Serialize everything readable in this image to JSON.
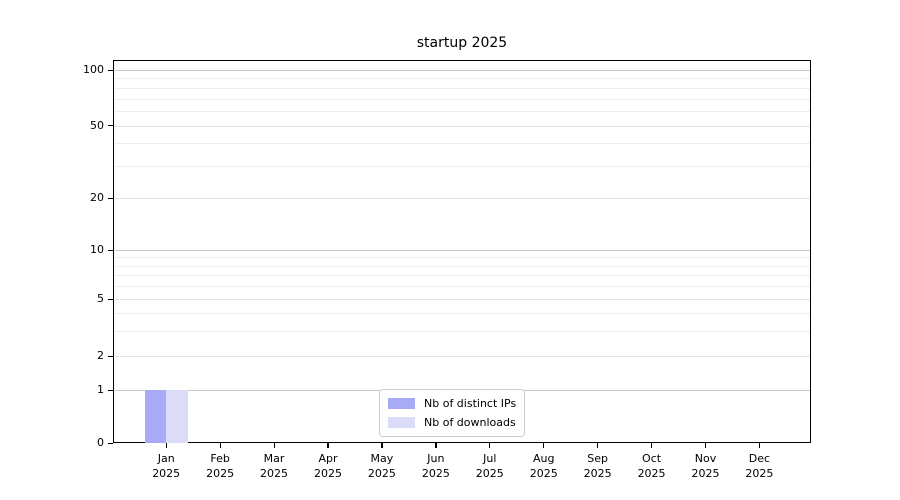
{
  "chart_data": {
    "type": "bar",
    "title": "startup 2025",
    "categories": [
      "Jan 2025",
      "Feb 2025",
      "Mar 2025",
      "Apr 2025",
      "May 2025",
      "Jun 2025",
      "Jul 2025",
      "Aug 2025",
      "Sep 2025",
      "Oct 2025",
      "Nov 2025",
      "Dec 2025"
    ],
    "x_tick_month_lines": [
      "Jan",
      "Feb",
      "Mar",
      "Apr",
      "May",
      "Jun",
      "Jul",
      "Aug",
      "Sep",
      "Oct",
      "Nov",
      "Dec"
    ],
    "x_tick_year_line": "2025",
    "series": [
      {
        "name": "Nb of distinct IPs",
        "color": "#a9aaf6",
        "values": [
          1,
          0,
          0,
          0,
          0,
          0,
          0,
          0,
          0,
          0,
          0,
          0
        ]
      },
      {
        "name": "Nb of downloads",
        "color": "#dbdcf8",
        "values": [
          1,
          0,
          0,
          0,
          0,
          0,
          0,
          0,
          0,
          0,
          0,
          0
        ]
      }
    ],
    "y_axis": {
      "scale": "symlog",
      "major_ticks": [
        0,
        1,
        2,
        5,
        10,
        20,
        50,
        100
      ],
      "minor_ticks": [
        3,
        4,
        6,
        7,
        8,
        9,
        30,
        40,
        60,
        70,
        80,
        90
      ],
      "range": [
        0,
        110
      ]
    },
    "legend": {
      "position": "lower center",
      "entries": [
        "Nb of distinct IPs",
        "Nb of downloads"
      ]
    },
    "grid": {
      "enabled": true,
      "decade_line_color": "#c8c8c8",
      "major_line_color": "#e4e4e4",
      "minor_line_color": "#eeeeee"
    }
  }
}
